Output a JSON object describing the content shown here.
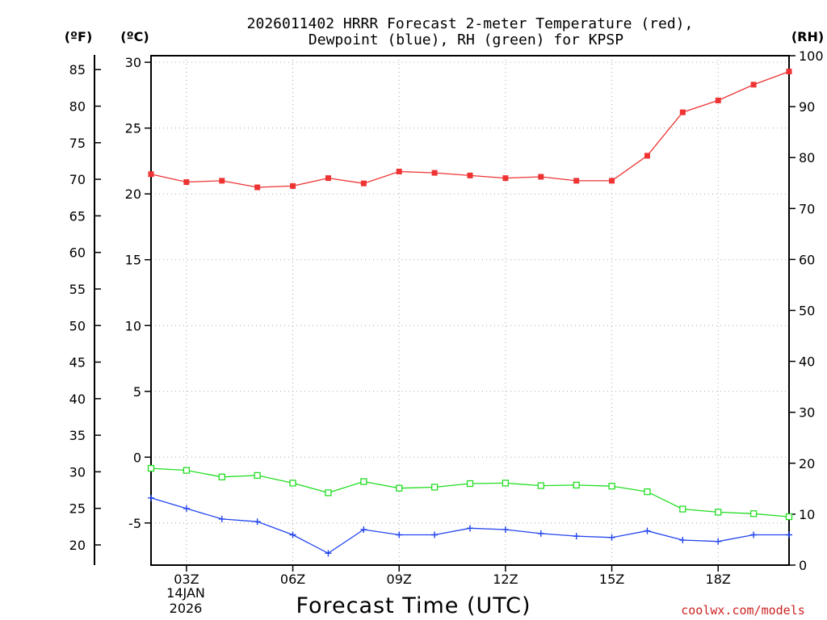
{
  "chart_data": {
    "type": "line",
    "title_line1": "2026011402 HRRR Forecast 2-meter Temperature (red),",
    "title_line2": "Dewpoint (blue), RH (green) for KPSP",
    "unit_left_f": "(ºF)",
    "unit_left_c": "(ºC)",
    "unit_right": "(RH)",
    "xlabel": "Forecast Time (UTC)",
    "credit": "coolwx.com/models",
    "x_range": [
      2,
      20
    ],
    "x_ticks": [
      {
        "x": 3,
        "label": "03Z"
      },
      {
        "x": 6,
        "label": "06Z"
      },
      {
        "x": 9,
        "label": "09Z"
      },
      {
        "x": 12,
        "label": "12Z"
      },
      {
        "x": 15,
        "label": "15Z"
      },
      {
        "x": 18,
        "label": "18Z"
      }
    ],
    "date_label_line1": "14JAN",
    "date_label_line2": "2026",
    "celsius_axis": {
      "range": [
        -8.2,
        30.5
      ],
      "ticks": [
        "30",
        "25",
        "20",
        "15",
        "10",
        "5",
        "0",
        "-5"
      ],
      "tick_values": [
        30,
        25,
        20,
        15,
        10,
        5,
        0,
        -5
      ]
    },
    "fahrenheit_axis": {
      "ticks": [
        "85",
        "80",
        "75",
        "70",
        "65",
        "60",
        "55",
        "50",
        "45",
        "40",
        "35",
        "30",
        "25",
        "20"
      ],
      "tick_values": [
        85,
        80,
        75,
        70,
        65,
        60,
        55,
        50,
        45,
        40,
        35,
        30,
        25,
        20
      ]
    },
    "rh_axis": {
      "range": [
        0,
        100
      ],
      "ticks": [
        "100",
        "90",
        "80",
        "70",
        "60",
        "50",
        "40",
        "30",
        "20",
        "10",
        "0"
      ],
      "tick_values": [
        100,
        90,
        80,
        70,
        60,
        50,
        40,
        30,
        20,
        10,
        0
      ]
    },
    "x": [
      2,
      3,
      4,
      5,
      6,
      7,
      8,
      9,
      10,
      11,
      12,
      13,
      14,
      15,
      16,
      17,
      18,
      19,
      20
    ],
    "series": [
      {
        "name": "Temperature",
        "color": "#ee3333",
        "marker": "filled-square",
        "axis": "celsius",
        "values": [
          21.5,
          20.9,
          21.0,
          20.5,
          20.6,
          21.2,
          20.8,
          21.7,
          21.6,
          21.4,
          21.2,
          21.3,
          21.0,
          21.0,
          22.9,
          26.2,
          27.1,
          28.3,
          29.3
        ]
      },
      {
        "name": "Dewpoint",
        "color": "#2244ee",
        "marker": "plus",
        "axis": "celsius",
        "values": [
          -3.1,
          -3.9,
          -4.7,
          -4.9,
          -5.9,
          -7.3,
          -5.5,
          -5.9,
          -5.9,
          -5.4,
          -5.5,
          -5.8,
          -6.0,
          -6.1,
          -5.6,
          -6.3,
          -6.4,
          -5.9,
          -5.9
        ]
      },
      {
        "name": "RH",
        "color": "#22dd22",
        "marker": "open-square",
        "axis": "rh",
        "values": [
          19.0,
          18.6,
          17.3,
          17.6,
          16.1,
          14.2,
          16.4,
          15.1,
          15.3,
          16.0,
          16.1,
          15.6,
          15.7,
          15.5,
          14.4,
          11.0,
          10.4,
          10.1,
          9.5
        ]
      }
    ]
  }
}
